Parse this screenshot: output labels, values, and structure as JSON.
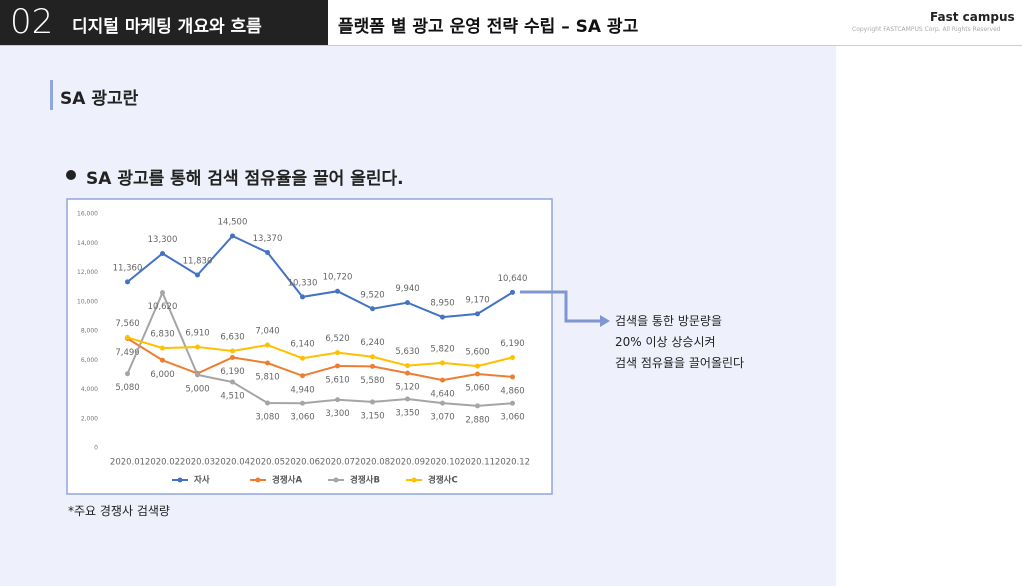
{
  "header": {
    "number": "02",
    "section": "디지털 마케팅 개요와 흐름",
    "title": "플랫폼 별 광고 운영 전략 수립 – SA 광고",
    "logo": "Fast campus",
    "copyright": "Copyright FASTCAMPUS Corp. All Rights Reserved"
  },
  "subheading": "SA 광고란",
  "bullet": "SA 광고를 통해 검색 점유율을 끌어 올린다.",
  "annotation": [
    "검색을 통한 방문량을",
    "20% 이상 상승시켜",
    "검색 점유율을 끌어올린다"
  ],
  "footnote": "*주요 경쟁사 검색량",
  "chart_data": {
    "type": "line",
    "categories": [
      "2020.01",
      "2020.02",
      "2020.03",
      "2020.04",
      "2020.05",
      "2020.06",
      "2020.07",
      "2020.08",
      "2020.09",
      "2020.10",
      "2020.11",
      "2020.12"
    ],
    "ylim": [
      0,
      16000
    ],
    "yticks": [
      0,
      {
        "value": 2000,
        "label": "2,000"
      },
      {
        "value": 4000,
        "label": "4,000"
      },
      {
        "value": 6000,
        "label": "6,000"
      },
      {
        "value": 8000,
        "label": "8,000"
      },
      {
        "value": 10000,
        "label": "10,000"
      },
      {
        "value": 12000,
        "label": "12,000"
      },
      {
        "value": 14000,
        "label": "14,000"
      },
      {
        "value": 16000,
        "label": "16,000"
      }
    ],
    "grid": false,
    "legend": "bottom",
    "series": [
      {
        "name": "자사",
        "color": "#4472c4",
        "values": [
          11360,
          13300,
          11830,
          14500,
          13370,
          10330,
          10720,
          9520,
          9940,
          8950,
          9170,
          10640
        ],
        "value_labels": [
          "11,360",
          "13,300",
          "11,830",
          "14,500",
          "13,370",
          "10,330",
          "10,720",
          "9,520",
          "9,940",
          "8,950",
          "9,170",
          "10,640"
        ]
      },
      {
        "name": "경쟁사A",
        "color": "#ed7d31",
        "values": [
          7490,
          6000,
          5100,
          6190,
          5810,
          4940,
          5610,
          5580,
          5120,
          4640,
          5060,
          4860
        ],
        "value_labels": [
          "7,490",
          "6,000",
          null,
          "6,190",
          "5,810",
          "4,940",
          "5,610",
          "5,580",
          "5,120",
          "4,640",
          "5,060",
          "4,860"
        ]
      },
      {
        "name": "경쟁사B",
        "color": "#a5a5a5",
        "values": [
          5080,
          10620,
          5000,
          4510,
          3080,
          3060,
          3300,
          3150,
          3350,
          3070,
          2880,
          3060
        ],
        "value_labels": [
          "5,080",
          "10,620",
          "5,000",
          "4,510",
          "3,080",
          "3,060",
          "3,300",
          "3,150",
          "3,350",
          "3,070",
          "2,880",
          "3,060"
        ]
      },
      {
        "name": "경쟁사C",
        "color": "#ffc000",
        "values": [
          7560,
          6830,
          6910,
          6630,
          7040,
          6140,
          6520,
          6240,
          5630,
          5820,
          5600,
          6190
        ],
        "value_labels": [
          "7,560",
          "6,830",
          "6,910",
          "6,630",
          "7,040",
          "6,140",
          "6,520",
          "6,240",
          "5,630",
          "5,820",
          "5,600",
          "6,190"
        ]
      }
    ]
  }
}
